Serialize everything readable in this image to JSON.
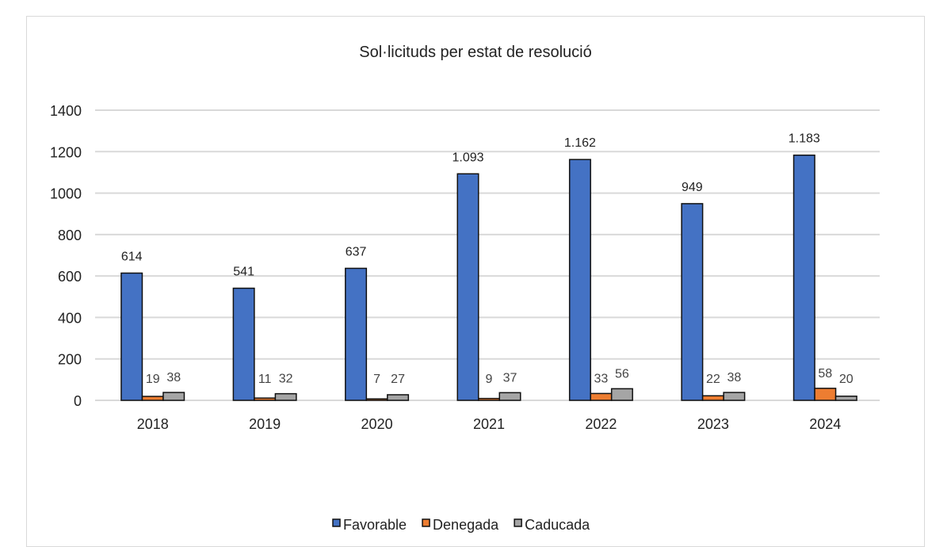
{
  "chart_data": {
    "type": "bar",
    "title": "Sol·licituds per estat de resolució",
    "xlabel": "",
    "ylabel": "",
    "categories": [
      "2018",
      "2019",
      "2020",
      "2021",
      "2022",
      "2023",
      "2024"
    ],
    "ylim": [
      0,
      1400
    ],
    "yticks": [
      0,
      200,
      400,
      600,
      800,
      1000,
      1200,
      1400
    ],
    "grid": true,
    "legend_position": "bottom",
    "series": [
      {
        "name": "Favorable",
        "color": "#4472c4",
        "values": [
          614,
          541,
          637,
          1093,
          1162,
          949,
          1183
        ],
        "labels": [
          "614",
          "541",
          "637",
          "1.093",
          "1.162",
          "949",
          "1.183"
        ]
      },
      {
        "name": "Denegada",
        "color": "#ed7d31",
        "values": [
          19,
          11,
          7,
          9,
          33,
          22,
          58
        ],
        "labels": [
          "19",
          "11",
          "7",
          "9",
          "33",
          "22",
          "58"
        ]
      },
      {
        "name": "Caducada",
        "color": "#a5a5a5",
        "values": [
          38,
          32,
          27,
          37,
          56,
          38,
          20
        ],
        "labels": [
          "38",
          "32",
          "27",
          "37",
          "56",
          "38",
          "20"
        ]
      }
    ]
  }
}
